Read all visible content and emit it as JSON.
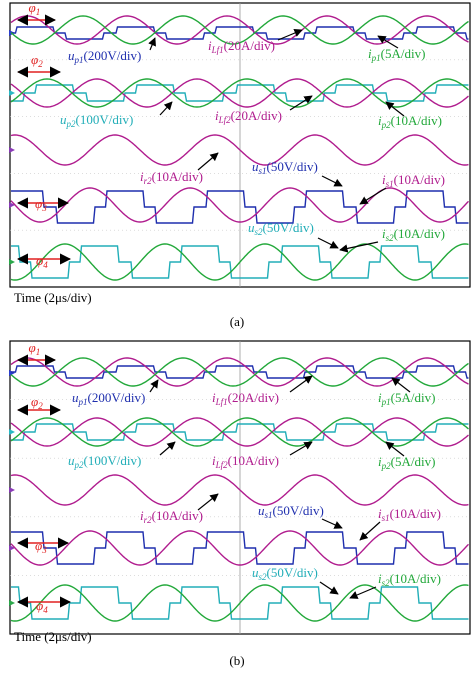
{
  "colors": {
    "blue": "#1f2fae",
    "green": "#22a83a",
    "magenta": "#b01c8e",
    "cyan": "#22aeb8",
    "red": "#e02020",
    "grid": "#9a9a9a",
    "marker_blue": "#2a3dd0",
    "marker_cyan": "#2ab8c4",
    "marker_purple": "#8a3ab8",
    "marker_green": "#2aa84a"
  },
  "chart_data": [
    {
      "type": "line",
      "panel_caption": "(a)",
      "time_label": "Time (2μs/div)",
      "series": [
        {
          "name": "u_p1",
          "label_main": "u",
          "label_sub": "p1",
          "label_scale": "(200V/div)",
          "color": "blue",
          "shape": "pulse"
        },
        {
          "name": "i_Lf1",
          "label_main": "i",
          "label_sub": "Lf1",
          "label_scale": "(20A/div)",
          "color": "magenta",
          "shape": "sine"
        },
        {
          "name": "i_p1",
          "label_main": "i",
          "label_sub": "p1",
          "label_scale": "(5A/div)",
          "color": "green",
          "shape": "sine"
        },
        {
          "name": "u_p2",
          "label_main": "u",
          "label_sub": "p2",
          "label_scale": "(100V/div)",
          "color": "cyan",
          "shape": "pulse"
        },
        {
          "name": "i_Lf2",
          "label_main": "i",
          "label_sub": "Lf2",
          "label_scale": "(20A/div)",
          "color": "magenta",
          "shape": "sine"
        },
        {
          "name": "i_p2",
          "label_main": "i",
          "label_sub": "p2",
          "label_scale": "(10A/div)",
          "color": "green",
          "shape": "sine"
        },
        {
          "name": "i_r2",
          "label_main": "i",
          "label_sub": "r2",
          "label_scale": "(10A/div)",
          "color": "magenta",
          "shape": "sine"
        },
        {
          "name": "u_s1",
          "label_main": "u",
          "label_sub": "s1",
          "label_scale": "(50V/div)",
          "color": "blue",
          "shape": "pulse"
        },
        {
          "name": "i_s1",
          "label_main": "i",
          "label_sub": "s1",
          "label_scale": "(10A/div)",
          "color": "magenta",
          "shape": "sine"
        },
        {
          "name": "u_s2",
          "label_main": "u",
          "label_sub": "s2",
          "label_scale": "(50V/div)",
          "color": "cyan",
          "shape": "pulse"
        },
        {
          "name": "i_s2",
          "label_main": "i",
          "label_sub": "s2",
          "label_scale": "(10A/div)",
          "color": "green",
          "shape": "sine"
        }
      ],
      "phase_labels": [
        {
          "main": "φ",
          "sub": "1"
        },
        {
          "main": "φ",
          "sub": "2"
        },
        {
          "main": "φ",
          "sub": "3"
        },
        {
          "main": "φ",
          "sub": "4"
        }
      ]
    },
    {
      "type": "line",
      "panel_caption": "(b)",
      "time_label": "Time (2μs/div)",
      "series": [
        {
          "name": "u_p1",
          "label_main": "u",
          "label_sub": "p1",
          "label_scale": "(200V/div)",
          "color": "blue",
          "shape": "pulse"
        },
        {
          "name": "i_Lf1",
          "label_main": "i",
          "label_sub": "Lf1",
          "label_scale": "(20A/div)",
          "color": "magenta",
          "shape": "sine"
        },
        {
          "name": "i_p1",
          "label_main": "i",
          "label_sub": "p1",
          "label_scale": "(5A/div)",
          "color": "green",
          "shape": "sine"
        },
        {
          "name": "u_p2",
          "label_main": "u",
          "label_sub": "p2",
          "label_scale": "(100V/div)",
          "color": "cyan",
          "shape": "pulse"
        },
        {
          "name": "i_Lf2",
          "label_main": "i",
          "label_sub": "Lf2",
          "label_scale": "(10A/div)",
          "color": "magenta",
          "shape": "sine"
        },
        {
          "name": "i_p2",
          "label_main": "i",
          "label_sub": "p2",
          "label_scale": "(5A/div)",
          "color": "green",
          "shape": "sine"
        },
        {
          "name": "i_r2",
          "label_main": "i",
          "label_sub": "r2",
          "label_scale": "(10A/div)",
          "color": "magenta",
          "shape": "sine"
        },
        {
          "name": "u_s1",
          "label_main": "u",
          "label_sub": "s1",
          "label_scale": "(50V/div)",
          "color": "blue",
          "shape": "pulse"
        },
        {
          "name": "i_s1",
          "label_main": "i",
          "label_sub": "s1",
          "label_scale": "(10A/div)",
          "color": "magenta",
          "shape": "sine"
        },
        {
          "name": "u_s2",
          "label_main": "u",
          "label_sub": "s2",
          "label_scale": "(50V/div)",
          "color": "cyan",
          "shape": "pulse"
        },
        {
          "name": "i_s2",
          "label_main": "i",
          "label_sub": "s2",
          "label_scale": "(10A/div)",
          "color": "green",
          "shape": "sine"
        }
      ],
      "phase_labels": [
        {
          "main": "φ",
          "sub": "1"
        },
        {
          "main": "φ",
          "sub": "2"
        },
        {
          "main": "φ",
          "sub": "3"
        },
        {
          "main": "φ",
          "sub": "4"
        }
      ]
    }
  ]
}
